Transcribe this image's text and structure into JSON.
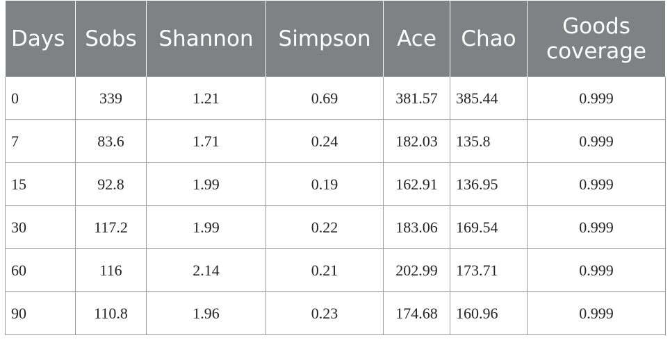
{
  "table": {
    "header": [
      "Days",
      "Sobs",
      "Shannon",
      "Simpson",
      "Ace",
      "Chao",
      "Goods coverage"
    ],
    "rows": [
      [
        "0",
        "339",
        "1.21",
        "0.69",
        "381.57",
        "385.44",
        "0.999"
      ],
      [
        "7",
        "83.6",
        "1.71",
        "0.24",
        "182.03",
        "135.8",
        "0.999"
      ],
      [
        "15",
        "92.8",
        "1.99",
        "0.19",
        "162.91",
        "136.95",
        "0.999"
      ],
      [
        "30",
        "117.2",
        "1.99",
        "0.22",
        "183.06",
        "169.54",
        "0.999"
      ],
      [
        "60",
        "116",
        "2.14",
        "0.21",
        "202.99",
        "173.71",
        "0.999"
      ],
      [
        "90",
        "110.8",
        "1.96",
        "0.23",
        "174.68",
        "160.96",
        "0.999"
      ]
    ]
  }
}
